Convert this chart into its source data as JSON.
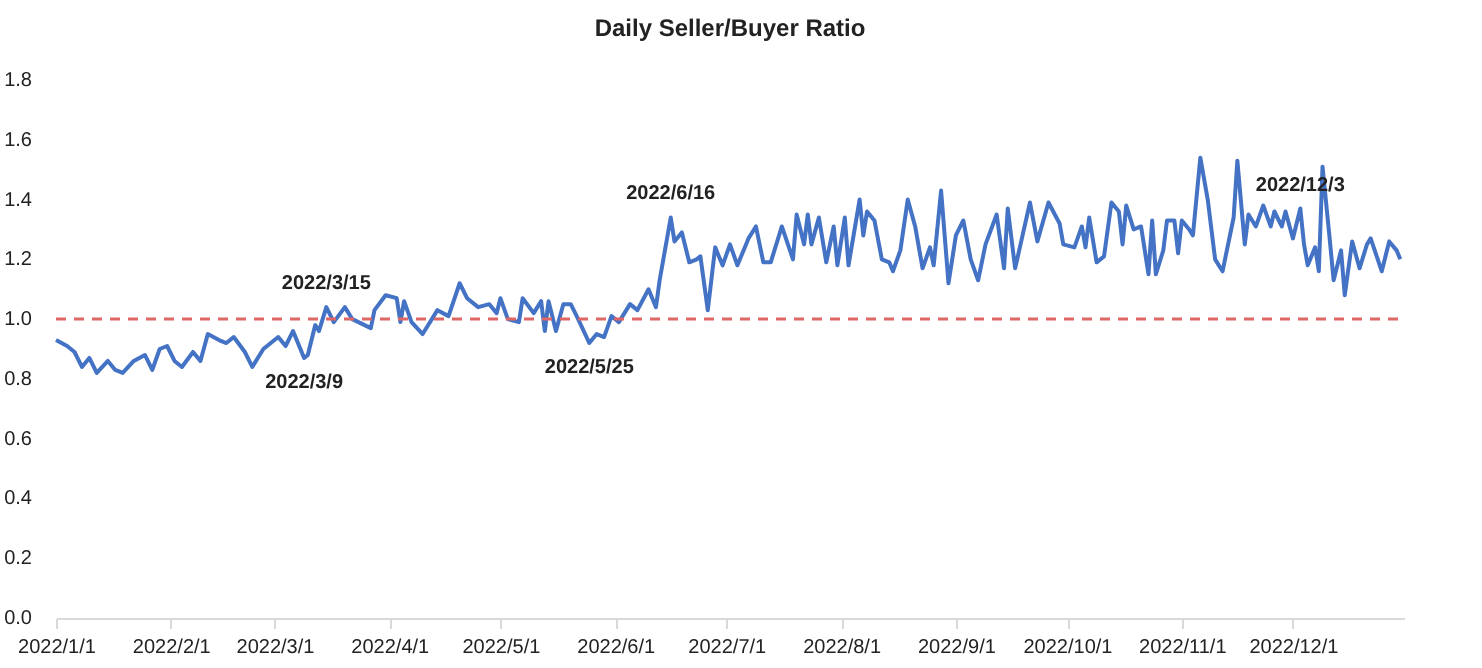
{
  "chart_data": {
    "type": "line",
    "title": "Daily Seller/Buyer Ratio",
    "x": [
      "2022-01-01",
      "2022-01-04",
      "2022-01-06",
      "2022-01-08",
      "2022-01-10",
      "2022-01-12",
      "2022-01-15",
      "2022-01-17",
      "2022-01-19",
      "2022-01-22",
      "2022-01-25",
      "2022-01-27",
      "2022-01-29",
      "2022-01-31",
      "2022-02-02",
      "2022-02-04",
      "2022-02-07",
      "2022-02-09",
      "2022-02-11",
      "2022-02-14",
      "2022-02-16",
      "2022-02-18",
      "2022-02-21",
      "2022-02-23",
      "2022-02-26",
      "2022-02-28",
      "2022-03-02",
      "2022-03-04",
      "2022-03-06",
      "2022-03-09",
      "2022-03-10",
      "2022-03-12",
      "2022-03-13",
      "2022-03-15",
      "2022-03-17",
      "2022-03-20",
      "2022-03-22",
      "2022-03-27",
      "2022-03-28",
      "2022-03-31",
      "2022-04-03",
      "2022-04-04",
      "2022-04-05",
      "2022-04-07",
      "2022-04-10",
      "2022-04-14",
      "2022-04-17",
      "2022-04-20",
      "2022-04-22",
      "2022-04-25",
      "2022-04-28",
      "2022-04-30",
      "2022-05-01",
      "2022-05-03",
      "2022-05-06",
      "2022-05-07",
      "2022-05-10",
      "2022-05-12",
      "2022-05-13",
      "2022-05-14",
      "2022-05-16",
      "2022-05-18",
      "2022-05-20",
      "2022-05-22",
      "2022-05-25",
      "2022-05-27",
      "2022-05-29",
      "2022-05-31",
      "2022-06-02",
      "2022-06-05",
      "2022-06-07",
      "2022-06-10",
      "2022-06-12",
      "2022-06-13",
      "2022-06-16",
      "2022-06-17",
      "2022-06-19",
      "2022-06-21",
      "2022-06-23",
      "2022-06-24",
      "2022-06-26",
      "2022-06-28",
      "2022-06-30",
      "2022-07-02",
      "2022-07-04",
      "2022-07-07",
      "2022-07-09",
      "2022-07-11",
      "2022-07-13",
      "2022-07-16",
      "2022-07-19",
      "2022-07-20",
      "2022-07-22",
      "2022-07-23",
      "2022-07-24",
      "2022-07-26",
      "2022-07-28",
      "2022-07-30",
      "2022-07-31",
      "2022-08-02",
      "2022-08-03",
      "2022-08-06",
      "2022-08-07",
      "2022-08-08",
      "2022-08-10",
      "2022-08-12",
      "2022-08-14",
      "2022-08-15",
      "2022-08-17",
      "2022-08-19",
      "2022-08-21",
      "2022-08-23",
      "2022-08-25",
      "2022-08-26",
      "2022-08-28",
      "2022-08-30",
      "2022-09-01",
      "2022-09-03",
      "2022-09-05",
      "2022-09-07",
      "2022-09-09",
      "2022-09-12",
      "2022-09-14",
      "2022-09-15",
      "2022-09-17",
      "2022-09-19",
      "2022-09-21",
      "2022-09-23",
      "2022-09-26",
      "2022-09-29",
      "2022-09-30",
      "2022-10-03",
      "2022-10-05",
      "2022-10-06",
      "2022-10-07",
      "2022-10-09",
      "2022-10-11",
      "2022-10-13",
      "2022-10-15",
      "2022-10-16",
      "2022-10-17",
      "2022-10-19",
      "2022-10-21",
      "2022-10-23",
      "2022-10-24",
      "2022-10-25",
      "2022-10-27",
      "2022-10-28",
      "2022-10-30",
      "2022-10-31",
      "2022-11-01",
      "2022-11-03",
      "2022-11-04",
      "2022-11-06",
      "2022-11-08",
      "2022-11-10",
      "2022-11-12",
      "2022-11-15",
      "2022-11-16",
      "2022-11-18",
      "2022-11-19",
      "2022-11-21",
      "2022-11-23",
      "2022-11-25",
      "2022-11-26",
      "2022-11-28",
      "2022-11-29",
      "2022-12-01",
      "2022-12-03",
      "2022-12-04",
      "2022-12-05",
      "2022-12-07",
      "2022-12-08",
      "2022-12-09",
      "2022-12-11",
      "2022-12-12",
      "2022-12-14",
      "2022-12-15",
      "2022-12-17",
      "2022-12-19",
      "2022-12-21",
      "2022-12-22",
      "2022-12-25",
      "2022-12-27",
      "2022-12-29",
      "2022-12-30"
    ],
    "series": [
      {
        "color": "#4472c4",
        "values": [
          0.93,
          0.91,
          0.89,
          0.84,
          0.87,
          0.82,
          0.86,
          0.83,
          0.82,
          0.86,
          0.88,
          0.83,
          0.9,
          0.91,
          0.86,
          0.84,
          0.89,
          0.86,
          0.95,
          0.93,
          0.92,
          0.94,
          0.89,
          0.84,
          0.9,
          0.92,
          0.94,
          0.91,
          0.96,
          0.87,
          0.88,
          0.98,
          0.96,
          1.04,
          0.99,
          1.04,
          1.0,
          0.97,
          1.03,
          1.08,
          1.07,
          0.99,
          1.06,
          0.99,
          0.95,
          1.03,
          1.01,
          1.12,
          1.07,
          1.04,
          1.05,
          1.02,
          1.07,
          1.0,
          0.99,
          1.07,
          1.02,
          1.06,
          0.96,
          1.06,
          0.96,
          1.05,
          1.05,
          1.0,
          0.92,
          0.95,
          0.94,
          1.01,
          0.99,
          1.05,
          1.03,
          1.1,
          1.04,
          1.13,
          1.34,
          1.26,
          1.29,
          1.19,
          1.2,
          1.21,
          1.03,
          1.24,
          1.18,
          1.25,
          1.18,
          1.27,
          1.31,
          1.19,
          1.19,
          1.31,
          1.2,
          1.35,
          1.25,
          1.35,
          1.25,
          1.34,
          1.19,
          1.31,
          1.18,
          1.34,
          1.18,
          1.4,
          1.28,
          1.36,
          1.33,
          1.2,
          1.19,
          1.16,
          1.23,
          1.4,
          1.31,
          1.17,
          1.24,
          1.18,
          1.43,
          1.12,
          1.28,
          1.33,
          1.2,
          1.13,
          1.25,
          1.35,
          1.17,
          1.37,
          1.17,
          1.28,
          1.39,
          1.26,
          1.39,
          1.32,
          1.25,
          1.24,
          1.31,
          1.24,
          1.34,
          1.19,
          1.21,
          1.39,
          1.36,
          1.25,
          1.38,
          1.3,
          1.31,
          1.15,
          1.33,
          1.15,
          1.23,
          1.33,
          1.33,
          1.22,
          1.33,
          1.3,
          1.28,
          1.54,
          1.4,
          1.2,
          1.16,
          1.34,
          1.53,
          1.25,
          1.35,
          1.31,
          1.38,
          1.31,
          1.36,
          1.31,
          1.36,
          1.27,
          1.37,
          1.25,
          1.18,
          1.24,
          1.16,
          1.51,
          1.26,
          1.13,
          1.23,
          1.08,
          1.26,
          1.17,
          1.25,
          1.27,
          1.16,
          1.26,
          1.23,
          1.2
        ]
      }
    ],
    "xlim": [
      "2022-01-01",
      "2022-12-31"
    ],
    "xticks": [
      {
        "value": "2022-01-01",
        "label": "2022/1/1"
      },
      {
        "value": "2022-02-01",
        "label": "2022/2/1"
      },
      {
        "value": "2022-03-01",
        "label": "2022/3/1"
      },
      {
        "value": "2022-04-01",
        "label": "2022/4/1"
      },
      {
        "value": "2022-05-01",
        "label": "2022/5/1"
      },
      {
        "value": "2022-06-01",
        "label": "2022/6/1"
      },
      {
        "value": "2022-07-01",
        "label": "2022/7/1"
      },
      {
        "value": "2022-08-01",
        "label": "2022/8/1"
      },
      {
        "value": "2022-09-01",
        "label": "2022/9/1"
      },
      {
        "value": "2022-10-01",
        "label": "2022/10/1"
      },
      {
        "value": "2022-11-01",
        "label": "2022/11/1"
      },
      {
        "value": "2022-12-01",
        "label": "2022/12/1"
      }
    ],
    "ylim": [
      0,
      1.8
    ],
    "yticks": [
      {
        "value": 0,
        "label": "0.0"
      },
      {
        "value": 0.2,
        "label": "0.2"
      },
      {
        "value": 0.4,
        "label": "0.4"
      },
      {
        "value": 0.6,
        "label": "0.6"
      },
      {
        "value": 0.8,
        "label": "0.8"
      },
      {
        "value": 1,
        "label": "1.0"
      },
      {
        "value": 1.2,
        "label": "1.2"
      },
      {
        "value": 1.4,
        "label": "1.4"
      },
      {
        "value": 1.6,
        "label": "1.6"
      },
      {
        "value": 1.8,
        "label": "1.8"
      }
    ],
    "ref_lines": [
      {
        "axis": "y",
        "value": 1,
        "color": "#e06666",
        "line_style": "dashed"
      }
    ],
    "annotations": [
      {
        "text": "2022/3/9",
        "x": "2022-03-09",
        "y": 0.87
      },
      {
        "text": "2022/3/15",
        "x": "2022-03-15",
        "y": 1.04
      },
      {
        "text": "2022/5/25",
        "x": "2022-05-25",
        "y": 0.92
      },
      {
        "text": "2022/6/16",
        "x": "2022-06-16",
        "y": 1.34
      },
      {
        "text": "2022/12/3",
        "x": "2022-12-03",
        "y": 1.37
      }
    ],
    "grid": false,
    "marker": "none",
    "line_style": "solid"
  }
}
